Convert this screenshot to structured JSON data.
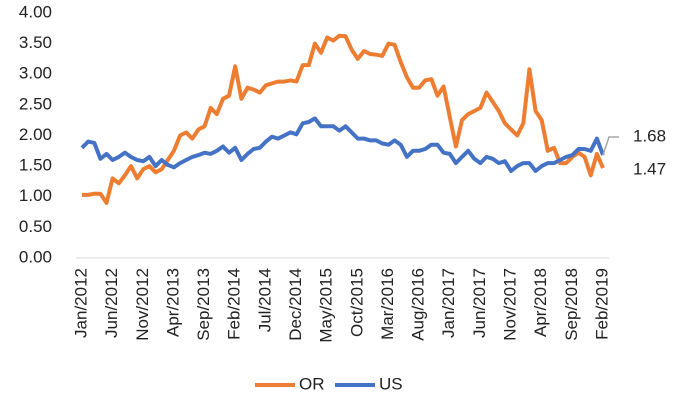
{
  "chart_data": {
    "type": "line",
    "categories": [
      "Jan/2012",
      null,
      null,
      null,
      null,
      "Jun/2012",
      null,
      null,
      null,
      null,
      "Nov/2012",
      null,
      null,
      null,
      null,
      "Apr/2013",
      null,
      null,
      null,
      null,
      "Sep/2013",
      null,
      null,
      null,
      null,
      "Feb/2014",
      null,
      null,
      null,
      null,
      "Jul/2014",
      null,
      null,
      null,
      null,
      "Dec/2014",
      null,
      null,
      null,
      null,
      "May/2015",
      null,
      null,
      null,
      null,
      "Oct/2015",
      null,
      null,
      null,
      null,
      "Mar/2016",
      null,
      null,
      null,
      null,
      "Aug/2016",
      null,
      null,
      null,
      null,
      "Jan/2017",
      null,
      null,
      null,
      null,
      "Jun/2017",
      null,
      null,
      null,
      null,
      "Nov/2017",
      null,
      null,
      null,
      null,
      "Apr/2018",
      null,
      null,
      null,
      null,
      "Sep/2018",
      null,
      null,
      null,
      null,
      "Feb/2019"
    ],
    "series": [
      {
        "name": "OR",
        "color": "#ed7d31",
        "values": [
          1.03,
          1.03,
          1.05,
          1.05,
          0.9,
          1.3,
          1.22,
          1.35,
          1.5,
          1.3,
          1.45,
          1.5,
          1.4,
          1.45,
          1.6,
          1.75,
          2.0,
          2.05,
          1.95,
          2.1,
          2.15,
          2.45,
          2.35,
          2.6,
          2.65,
          3.13,
          2.6,
          2.78,
          2.75,
          2.7,
          2.82,
          2.85,
          2.88,
          2.88,
          2.9,
          2.88,
          3.15,
          3.15,
          3.5,
          3.35,
          3.6,
          3.55,
          3.63,
          3.62,
          3.4,
          3.25,
          3.38,
          3.33,
          3.32,
          3.3,
          3.5,
          3.48,
          3.2,
          2.95,
          2.78,
          2.78,
          2.9,
          2.92,
          2.65,
          2.8,
          2.3,
          1.82,
          2.25,
          2.35,
          2.4,
          2.45,
          2.7,
          2.55,
          2.4,
          2.2,
          2.1,
          2.0,
          2.2,
          3.08,
          2.4,
          2.25,
          1.75,
          1.8,
          1.55,
          1.55,
          1.65,
          1.72,
          1.65,
          1.35,
          1.7,
          1.47
        ]
      },
      {
        "name": "US",
        "color": "#4472c4",
        "values": [
          1.8,
          1.9,
          1.88,
          1.62,
          1.7,
          1.6,
          1.65,
          1.72,
          1.65,
          1.6,
          1.58,
          1.65,
          1.5,
          1.6,
          1.52,
          1.48,
          1.55,
          1.6,
          1.65,
          1.68,
          1.72,
          1.7,
          1.75,
          1.82,
          1.72,
          1.8,
          1.6,
          1.7,
          1.78,
          1.8,
          1.9,
          1.98,
          1.95,
          2.0,
          2.05,
          2.02,
          2.2,
          2.22,
          2.28,
          2.15,
          2.15,
          2.15,
          2.08,
          2.15,
          2.05,
          1.95,
          1.95,
          1.92,
          1.92,
          1.87,
          1.85,
          1.92,
          1.85,
          1.65,
          1.75,
          1.75,
          1.78,
          1.85,
          1.85,
          1.72,
          1.7,
          1.55,
          1.65,
          1.75,
          1.62,
          1.55,
          1.65,
          1.62,
          1.55,
          1.58,
          1.42,
          1.5,
          1.55,
          1.55,
          1.42,
          1.5,
          1.55,
          1.55,
          1.6,
          1.65,
          1.68,
          1.78,
          1.78,
          1.75,
          1.95,
          1.68
        ]
      }
    ],
    "ylim": [
      0,
      4
    ],
    "yticks": [
      {
        "value": 0,
        "label": "0.00"
      },
      {
        "value": 0.5,
        "label": "0.50"
      },
      {
        "value": 1,
        "label": "1.00"
      },
      {
        "value": 1.5,
        "label": "1.50"
      },
      {
        "value": 2,
        "label": "2.00"
      },
      {
        "value": 2.5,
        "label": "2.50"
      },
      {
        "value": 3,
        "label": "3.00"
      },
      {
        "value": 3.5,
        "label": "3.50"
      },
      {
        "value": 4,
        "label": "4.00"
      }
    ],
    "legend": "bottom"
  }
}
